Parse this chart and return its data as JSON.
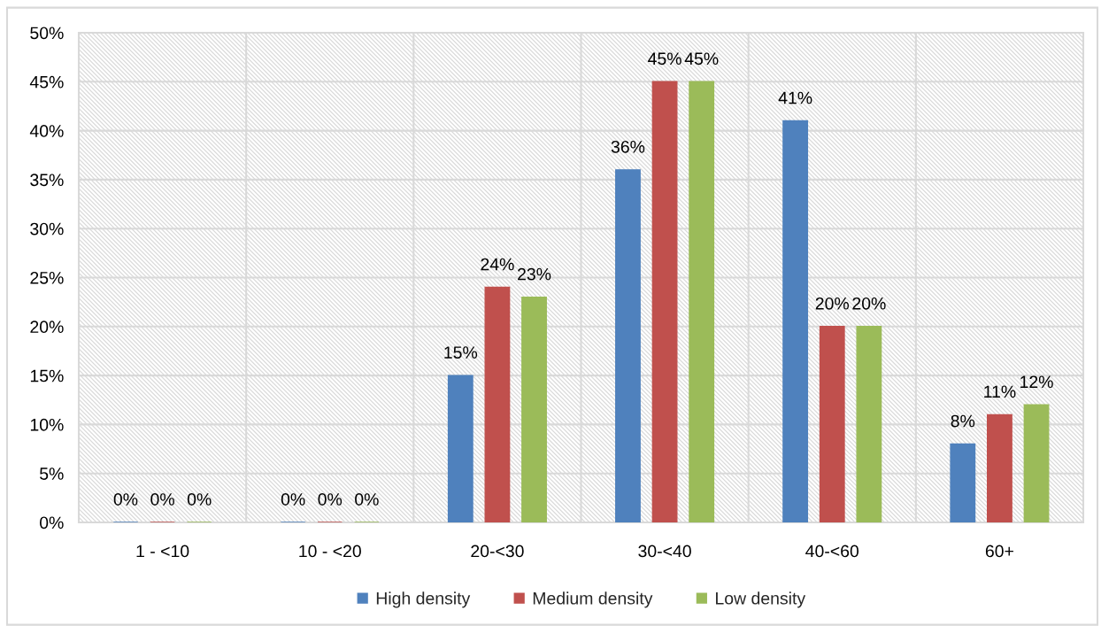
{
  "chart_data": {
    "type": "bar",
    "categories": [
      "1 - <10",
      "10 - <20",
      "20-<30",
      "30-<40",
      "40-<60",
      "60+"
    ],
    "series": [
      {
        "name": "High density",
        "color": "#4f81bd",
        "values": [
          0,
          0,
          15,
          36,
          41,
          8
        ],
        "value_labels": [
          "0%",
          "0%",
          "15%",
          "36%",
          "41%",
          "8%"
        ]
      },
      {
        "name": "Medium density",
        "color": "#c0504d",
        "values": [
          0,
          0,
          24,
          45,
          20,
          11
        ],
        "value_labels": [
          "0%",
          "0%",
          "24%",
          "45%",
          "20%",
          "11%"
        ]
      },
      {
        "name": "Low density",
        "color": "#9bbb59",
        "values": [
          0,
          0,
          23,
          45,
          20,
          12
        ],
        "value_labels": [
          "0%",
          "0%",
          "23%",
          "45%",
          "20%",
          "12%"
        ]
      }
    ],
    "ylim": [
      0,
      50
    ],
    "yticks": [
      {
        "value": 0,
        "label": "0%"
      },
      {
        "value": 5,
        "label": "5%"
      },
      {
        "value": 10,
        "label": "10%"
      },
      {
        "value": 15,
        "label": "15%"
      },
      {
        "value": 20,
        "label": "20%"
      },
      {
        "value": 25,
        "label": "25%"
      },
      {
        "value": 30,
        "label": "30%"
      },
      {
        "value": 35,
        "label": "35%"
      },
      {
        "value": 40,
        "label": "40%"
      },
      {
        "value": 45,
        "label": "45%"
      },
      {
        "value": 50,
        "label": "50%"
      }
    ],
    "grid": true,
    "legend": "bottom"
  }
}
